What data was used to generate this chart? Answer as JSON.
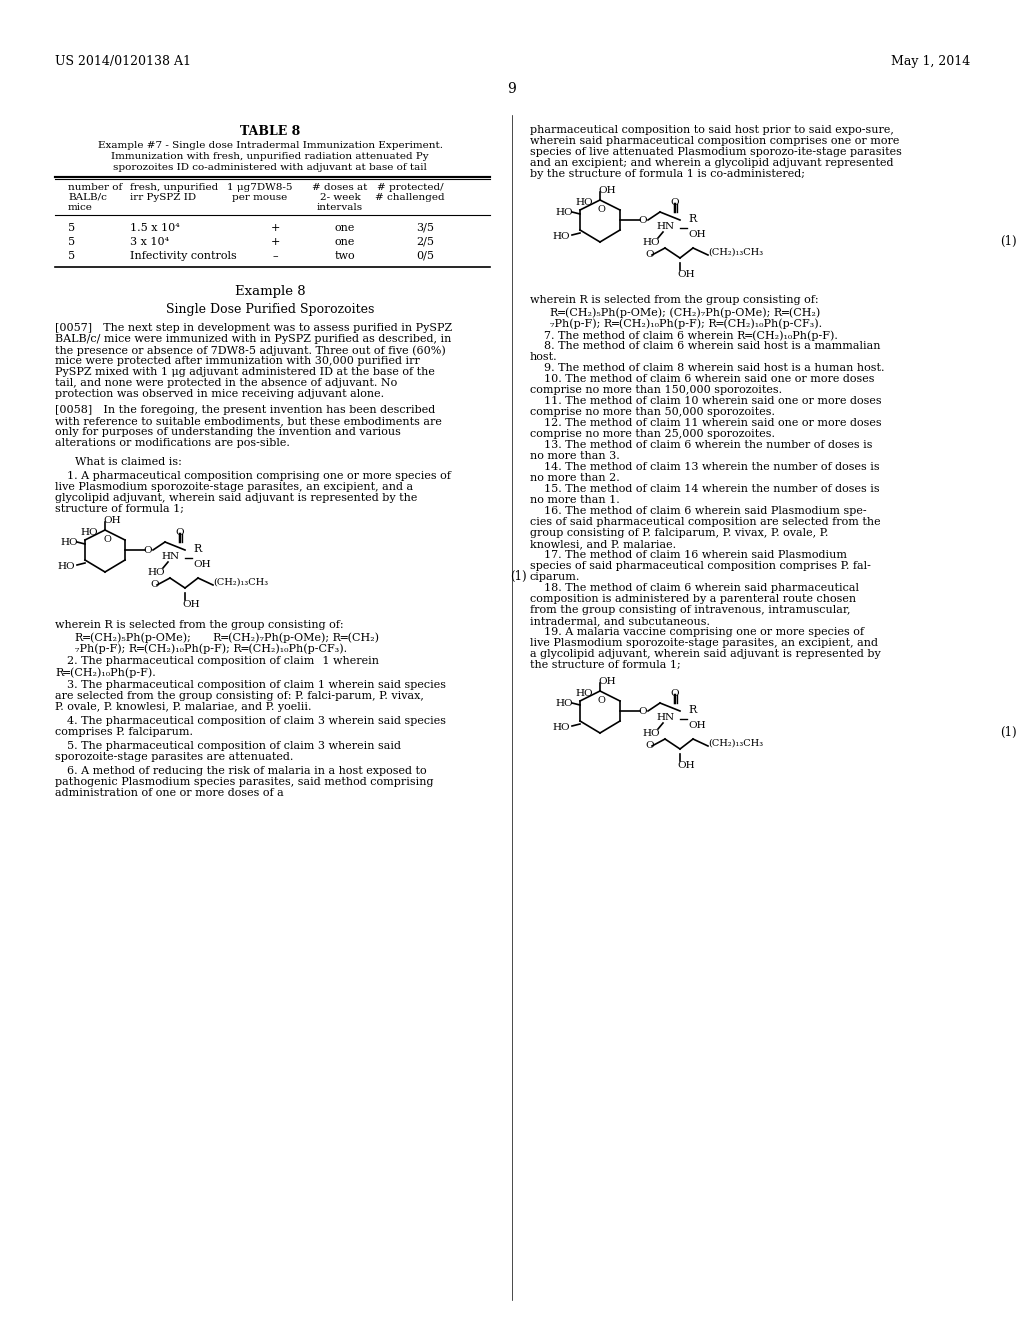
{
  "header_left": "US 2014/0120138 A1",
  "header_right": "May 1, 2014",
  "page_number": "9",
  "background_color": "#ffffff",
  "text_color": "#000000",
  "table_title": "TABLE 8",
  "table_subtitle1": "Example #7 - Single dose Intradermal Immunization Experiment.",
  "table_subtitle2": "Immunization with fresh, unpurified radiation attenuated Py",
  "table_subtitle3": "sporozoites ID co-administered with adjuvant at base of tail",
  "col_headers": [
    "number of\nBALB/c\nmice",
    "fresh, unpurified\nirr PySPZ ID",
    "1 μg7DW8-5\nper mouse",
    "# doses at\n2- week\nintervals",
    "# protected/\n# challenged"
  ],
  "table_data": [
    [
      "5",
      "1.5 x 10⁴",
      "+",
      "one",
      "3/5"
    ],
    [
      "5",
      "3 x 10⁴",
      "+",
      "one",
      "2/5"
    ],
    [
      "5",
      "Infectivity controls",
      "–",
      "two",
      "0/5"
    ]
  ],
  "example8_title": "Example 8",
  "example8_subtitle": "Single Dose Purified Sporozoites",
  "para_0057": "[0057] The next step in development was to assess purified in PySPZ BALB/c/ mice were immunized with in PySPZ purified as described, in the presence or absence of 7DW8-5 adjuvant. Three out of five (60%) mice were protected after immunization with 30,000 purified irr PySPZ mixed with 1 μg adjuvant administered ID at the base of the tail, and none were protected in the absence of adjuvant. No protection was observed in mice receiving adjuvant alone.",
  "para_0058_start": "[0058] In the foregoing, the present invention has been described with reference to suitable embodiments, but these embodiments are only for purposes of understanding the invention and various alterations or modifications are pos-sible.",
  "what_claimed": "What is claimed is:",
  "claim1": "1. A pharmaceutical composition comprising one or more species of live Plasmodium sporozoite-stage parasites, an excipient, and a glycolipid adjuvant, wherein said adjuvant is represented by the structure of formula 1;",
  "formula_label_left": "(1)",
  "wherein_left": "wherein R is selected from the group consisting of:\n    R═(CH₂)₅Ph(p-OMe);   R═(CH₂)₇Ph(p-OMe); R═(CH₂)\n    ₇Ph(p-F); R═(CH₂)₁₀Ph(p-F); R═(CH₂)₁₀Ph(p-CF₃).",
  "right_col_top": "pharmaceutical composition to said host prior to said expo-sure, wherein said pharmaceutical composition comprises one or more species of live attenuated Plasmodium sporozo-ite-stage parasites and an excipient; and wherein a glycolipid adjuvant represented by the structure of formula 1 is co-administered;",
  "right_formula_label": "(1)",
  "right_wherein": "wherein R is selected from the group consisting of:\n    R═(CH₂)₅Ph(p-OMe); (CH₂)₇Ph(p-OMe); R═(CH₂)\n    ₇Ph(p-F); R═(CH₂)₁₀Ph(p-F); R═(CH₂)₁₀Ph(p-CF₃).",
  "claim2": "2. The pharmaceutical composition of claim 1 wherein R═(CH₂)₁₀Ph(p-F).",
  "claim3": "3. The pharmaceutical composition of claim 1 wherein said species are selected from the group consisting of: P. falci-parum, P. vivax, P. ovale, P. knowlesi, P. malariae, and P. yoelii.",
  "claim4": "4. The pharmaceutical composition of claim 3 wherein said species comprises P. falciparum.",
  "claim5": "5. The pharmaceutical composition of claim 3 wherein said sporozoite-stage parasites are attenuated.",
  "claim6": "6. A method of reducing the risk of malaria in a host exposed to pathogenic Plasmodium species parasites, said method comprising administration of one or more doses of a",
  "right_claims": "7. The method of claim 6 wherein R═(CH₂)₁₀Ph(p-F).\n8. The method of claim 6 wherein said host is a mammalian host.\n9. The method of claim 8 wherein said host is a human host.\n10. The method of claim 6 wherein said one or more doses comprise no more than 150,000 sporozoites.\n11. The method of claim 10 wherein said one or more doses comprise no more than 50,000 sporozoites.\n12. The method of claim 11 wherein said one or more doses comprise no more than 25,000 sporozoites.\n13. The method of claim 6 wherein the number of doses is no more than 3.\n14. The method of claim 13 wherein the number of doses is no more than 2.\n15. The method of claim 14 wherein the number of doses is no more than 1.\n16. The method of claim 6 wherein said Plasmodium species of said pharmaceutical composition are selected from the group consisting of P. falciparum, P. vivax, P. ovale, P. knowlesi, and P. malariae.\n17. The method of claim 16 wherein said Plasmodium species of said pharmaceutical composition comprises P. fal-ciparum.\n18. The method of claim 6 wherein said pharmaceutical composition is administered by a parenteral route chosen from the group consisting of intravenous, intramuscular, intradermal, and subcutaneous.\n19. A malaria vaccine comprising one or more species of live Plasmodium sporozoite-stage parasites, an excipient, and a glycolipid adjuvant, wherein said adjuvant is represented by the structure of formula 1;"
}
